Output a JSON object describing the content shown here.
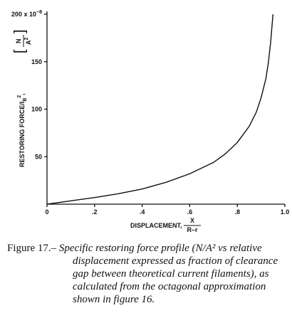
{
  "chart_data": {
    "type": "line",
    "ylabel": {
      "text": "RESTORING FORCE/I",
      "sub": "B",
      "sup": "2",
      "unit_open": "[",
      "unit_num": "N",
      "unit_den": "A",
      "unit_den_sup": "2",
      "unit_close": "]",
      "sep": ","
    },
    "xlabel": {
      "text": "DISPLACEMENT,",
      "num": "X",
      "den": "R–r"
    },
    "x": [
      0,
      0.1,
      0.2,
      0.3,
      0.4,
      0.5,
      0.6,
      0.7,
      0.75,
      0.8,
      0.85,
      0.88,
      0.9,
      0.92,
      0.93,
      0.94,
      0.95
    ],
    "series": [
      {
        "color": "#111111",
        "values": [
          0,
          3.5,
          7,
          11,
          16,
          23,
          32,
          44,
          53,
          65,
          82,
          97,
          112,
          132,
          148,
          170,
          200
        ]
      }
    ],
    "xlim": [
      0,
      1.0
    ],
    "ylim": [
      0,
      200
    ],
    "xticks": [
      0,
      {
        "value": 0.2,
        "label": ".2"
      },
      {
        "value": 0.4,
        "label": ".4"
      },
      {
        "value": 0.6,
        "label": ".6"
      },
      {
        "value": 0.8,
        "label": ".8"
      },
      {
        "value": 1.0,
        "label": "1.0"
      }
    ],
    "yticks": [
      50,
      100,
      150,
      {
        "value": 200,
        "label": "200 x 10"
      }
    ],
    "y_multiplier_exponent": "−8",
    "grid": false
  },
  "caption": {
    "label": "Figure 17.–",
    "text": "Specific restoring force profile (N/A² vs relative displacement expressed as fraction of clearance gap between theoretical current filaments), as calculated from the octagonal approximation shown in figure 16."
  }
}
